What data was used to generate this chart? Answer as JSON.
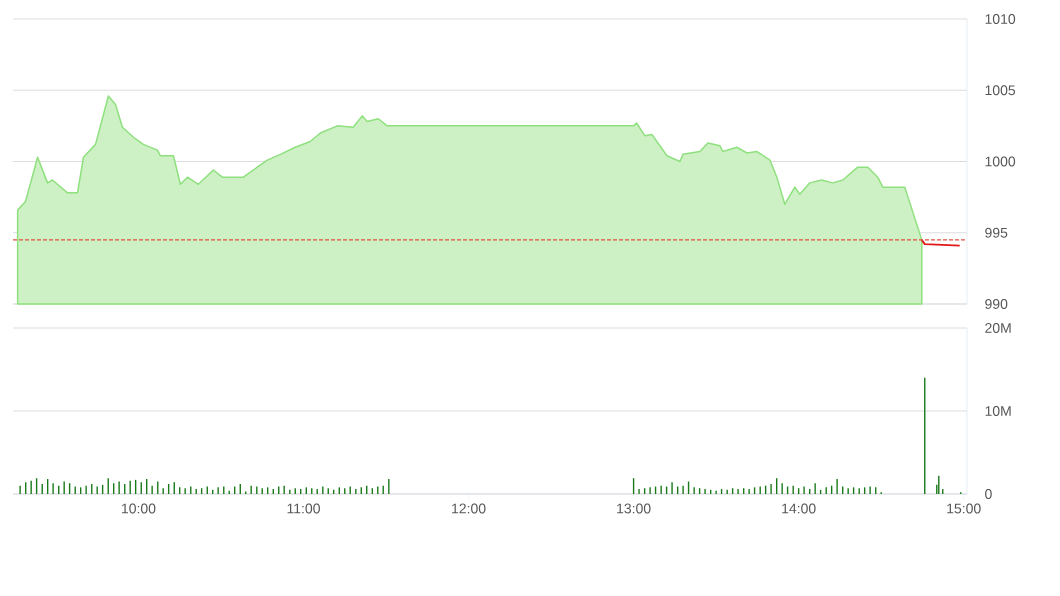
{
  "chart_data": [
    {
      "type": "area",
      "x": [
        9.268,
        9.316,
        9.389,
        9.449,
        9.479,
        9.57,
        9.631,
        9.667,
        9.74,
        9.818,
        9.861,
        9.903,
        9.97,
        10.03,
        10.115,
        10.133,
        10.212,
        10.254,
        10.297,
        10.363,
        10.454,
        10.508,
        10.636,
        10.72,
        10.781,
        10.86,
        10.95,
        11.041,
        11.102,
        11.205,
        11.301,
        11.356,
        11.386,
        11.453,
        11.507,
        13.0,
        13.018,
        13.069,
        13.111,
        13.202,
        13.281,
        13.299,
        13.402,
        13.45,
        13.523,
        13.541,
        13.626,
        13.686,
        13.747,
        13.826,
        13.868,
        13.916,
        13.977,
        14.007,
        14.068,
        14.14,
        14.207,
        14.268,
        14.358,
        14.419,
        14.479,
        14.51,
        14.643,
        14.746
      ],
      "series": [
        {
          "color": "#8fe07e",
          "values": [
            996.6,
            997.2,
            1000.3,
            998.5,
            998.7,
            997.8,
            997.8,
            1000.3,
            1001.2,
            1004.6,
            1004.0,
            1002.4,
            1001.7,
            1001.2,
            1000.8,
            1000.4,
            1000.4,
            998.4,
            998.9,
            998.4,
            999.4,
            998.9,
            998.9,
            999.6,
            1000.1,
            1000.5,
            1001.0,
            1001.4,
            1002.0,
            1002.5,
            1002.4,
            1003.2,
            1002.8,
            1003.0,
            1002.5,
            1002.5,
            1002.7,
            1001.8,
            1001.9,
            1000.4,
            1000.0,
            1000.5,
            1000.7,
            1001.3,
            1001.1,
            1000.7,
            1001.0,
            1000.6,
            1000.7,
            1000.1,
            998.9,
            997.0,
            998.2,
            997.7,
            998.5,
            998.7,
            998.5,
            998.7,
            999.6,
            999.6,
            998.9,
            998.2,
            998.2,
            994.5
          ]
        },
        {
          "type": "line",
          "color": "#e01818",
          "x": [
            14.746,
            14.764,
            14.976
          ],
          "values": [
            994.5,
            994.2,
            994.1
          ]
        }
      ],
      "xlim": [
        9.24,
        15.02
      ],
      "ylim": [
        990,
        1010
      ],
      "yticks": [
        990,
        995,
        1000,
        1005,
        1010
      ],
      "grid": "y",
      "tick_labels": "y",
      "ref_lines": [
        {
          "axis": "y",
          "value": 994.5,
          "color": "#e05040",
          "line_style": "dashed"
        }
      ]
    },
    {
      "type": "bar",
      "color": "#1a7a1a",
      "x": [
        9.283,
        9.317,
        9.35,
        9.383,
        9.417,
        9.45,
        9.483,
        9.517,
        9.55,
        9.583,
        9.617,
        9.65,
        9.683,
        9.717,
        9.75,
        9.783,
        9.817,
        9.85,
        9.883,
        9.917,
        9.95,
        9.983,
        10.017,
        10.05,
        10.083,
        10.117,
        10.15,
        10.183,
        10.217,
        10.25,
        10.283,
        10.317,
        10.35,
        10.383,
        10.417,
        10.45,
        10.483,
        10.517,
        10.55,
        10.583,
        10.617,
        10.65,
        10.683,
        10.717,
        10.75,
        10.783,
        10.817,
        10.85,
        10.883,
        10.917,
        10.95,
        10.983,
        11.017,
        11.05,
        11.083,
        11.117,
        11.15,
        11.183,
        11.217,
        11.25,
        11.283,
        11.317,
        11.35,
        11.383,
        11.417,
        11.45,
        11.483,
        11.517,
        13.0,
        13.033,
        13.067,
        13.1,
        13.133,
        13.167,
        13.2,
        13.233,
        13.267,
        13.3,
        13.333,
        13.367,
        13.4,
        13.433,
        13.467,
        13.5,
        13.533,
        13.567,
        13.6,
        13.633,
        13.667,
        13.7,
        13.733,
        13.767,
        13.8,
        13.833,
        13.867,
        13.9,
        13.933,
        13.967,
        14.0,
        14.033,
        14.067,
        14.1,
        14.133,
        14.167,
        14.2,
        14.233,
        14.267,
        14.3,
        14.333,
        14.367,
        14.4,
        14.433,
        14.467,
        14.5,
        14.764,
        14.837,
        14.849,
        14.873,
        14.982
      ],
      "values": [
        1.0,
        1.4,
        1.6,
        1.9,
        1.2,
        1.8,
        1.3,
        1.0,
        1.5,
        1.3,
        0.9,
        0.8,
        1.0,
        1.2,
        0.9,
        1.1,
        1.9,
        1.3,
        1.5,
        1.2,
        1.6,
        1.7,
        1.4,
        1.8,
        1.0,
        1.5,
        0.7,
        1.2,
        1.4,
        0.8,
        0.7,
        0.9,
        0.6,
        0.7,
        0.9,
        0.5,
        0.8,
        0.9,
        0.4,
        0.9,
        1.2,
        0.3,
        1.0,
        0.9,
        0.7,
        0.8,
        0.6,
        0.9,
        1.0,
        0.5,
        0.7,
        0.6,
        0.8,
        0.7,
        0.6,
        0.9,
        0.7,
        0.5,
        0.8,
        0.7,
        0.9,
        0.6,
        0.8,
        1.0,
        0.7,
        0.9,
        1.0,
        1.8,
        1.9,
        0.6,
        0.7,
        0.8,
        0.9,
        1.0,
        0.9,
        1.4,
        0.9,
        1.0,
        1.5,
        0.8,
        0.7,
        0.6,
        0.5,
        0.4,
        0.6,
        0.5,
        0.7,
        0.6,
        0.7,
        0.6,
        0.8,
        0.9,
        1.0,
        1.2,
        1.9,
        1.3,
        0.9,
        1.0,
        0.7,
        0.9,
        0.6,
        1.3,
        0.5,
        0.8,
        1.0,
        1.8,
        0.9,
        0.7,
        0.8,
        0.7,
        0.8,
        0.9,
        0.8,
        0.2,
        14.0,
        1.1,
        2.2,
        0.6,
        0.2
      ],
      "xlim": [
        9.24,
        15.02
      ],
      "xticks": [
        {
          "value": 10,
          "label": "10:00"
        },
        {
          "value": 11,
          "label": "11:00"
        },
        {
          "value": 12,
          "label": "12:00"
        },
        {
          "value": 13,
          "label": "13:00"
        },
        {
          "value": 14,
          "label": "14:00"
        },
        {
          "value": 15,
          "label": "15:00"
        }
      ],
      "ylim": [
        0,
        20
      ],
      "yticks": [
        0,
        {
          "value": 10,
          "label": "10M"
        },
        {
          "value": 20,
          "label": "20M"
        }
      ],
      "grid": "y"
    }
  ]
}
